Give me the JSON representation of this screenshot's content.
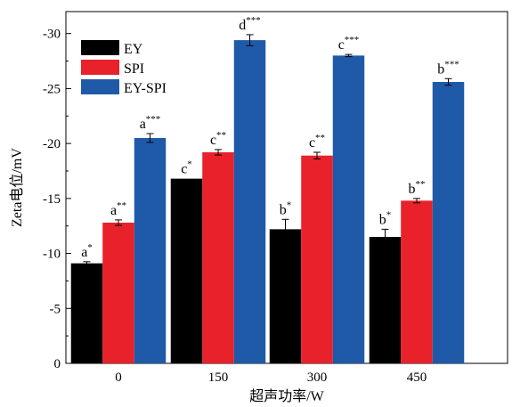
{
  "chart_data": {
    "type": "bar",
    "title": "",
    "xlabel": "超声功率/W",
    "ylabel": "Zeta电位/mV",
    "categories": [
      "0",
      "150",
      "300",
      "450"
    ],
    "yticks": [
      "0",
      "-5",
      "-10",
      "-15",
      "-20",
      "-25",
      "-30"
    ],
    "ylim": [
      0,
      -32
    ],
    "y_direction": "increasing-downward-values-upward-negative",
    "grid": false,
    "legend_position": "top-left",
    "series": [
      {
        "name": "EY",
        "color": "#000000",
        "values": [
          -9.1,
          -16.8,
          -12.2,
          -11.5
        ],
        "errors": [
          0.15,
          0.0,
          0.9,
          0.7
        ],
        "labels": [
          "a",
          "c",
          "b",
          "b"
        ],
        "sig": [
          "*",
          "*",
          "*",
          "*"
        ]
      },
      {
        "name": "SPI",
        "color": "#e8212a",
        "values": [
          -12.8,
          -19.2,
          -18.9,
          -14.8
        ],
        "errors": [
          0.25,
          0.25,
          0.3,
          0.2
        ],
        "labels": [
          "a",
          "c",
          "c",
          "b"
        ],
        "sig": [
          "**",
          "**",
          "**",
          "**"
        ]
      },
      {
        "name": "EY-SPI",
        "color": "#1f5aa8",
        "values": [
          -20.5,
          -29.4,
          -28.0,
          -25.6
        ],
        "errors": [
          0.4,
          0.5,
          0.1,
          0.3
        ],
        "labels": [
          "a",
          "d",
          "c",
          "b"
        ],
        "sig": [
          "***",
          "***",
          "***",
          "***"
        ]
      }
    ]
  }
}
